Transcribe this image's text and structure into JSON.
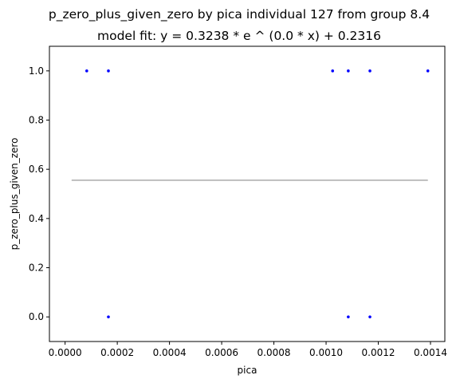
{
  "chart_data": {
    "type": "scatter",
    "title": "p_zero_plus_given_zero by pica individual 127 from group 8.4",
    "subtitle": "model fit: y = 0.3238 * e ^ (0.0 * x) + 0.2316",
    "xlabel": "pica",
    "ylabel": "p_zero_plus_given_zero",
    "xlim": [
      -6e-05,
      0.001455
    ],
    "ylim": [
      -0.1,
      1.1
    ],
    "x_ticks": [
      {
        "value": 0.0,
        "label": "0.0000"
      },
      {
        "value": 0.0002,
        "label": "0.0002"
      },
      {
        "value": 0.0004,
        "label": "0.0004"
      },
      {
        "value": 0.0006,
        "label": "0.0006"
      },
      {
        "value": 0.0008,
        "label": "0.0008"
      },
      {
        "value": 0.001,
        "label": "0.0010"
      },
      {
        "value": 0.0012,
        "label": "0.0012"
      },
      {
        "value": 0.0014,
        "label": "0.0014"
      }
    ],
    "y_ticks": [
      {
        "value": 0.0,
        "label": "0.0"
      },
      {
        "value": 0.2,
        "label": "0.2"
      },
      {
        "value": 0.4,
        "label": "0.4"
      },
      {
        "value": 0.6,
        "label": "0.6"
      },
      {
        "value": 0.8,
        "label": "0.8"
      },
      {
        "value": 1.0,
        "label": "1.0"
      }
    ],
    "points": [
      {
        "x": 8.3e-05,
        "y": 1.0
      },
      {
        "x": 0.000166,
        "y": 1.0
      },
      {
        "x": 0.000166,
        "y": 0.0
      },
      {
        "x": 0.001025,
        "y": 1.0
      },
      {
        "x": 0.001085,
        "y": 1.0
      },
      {
        "x": 0.001085,
        "y": 0.0
      },
      {
        "x": 0.001168,
        "y": 1.0
      },
      {
        "x": 0.001168,
        "y": 0.0
      },
      {
        "x": 0.00139,
        "y": 1.0
      }
    ],
    "fit_line": {
      "x": [
        2.5e-05,
        0.00139
      ],
      "y": [
        0.5554,
        0.5554
      ]
    },
    "colors": {
      "points": "#0000ff",
      "fit_line": "#aaaaaa",
      "axes": "#000000"
    },
    "grid": false
  }
}
